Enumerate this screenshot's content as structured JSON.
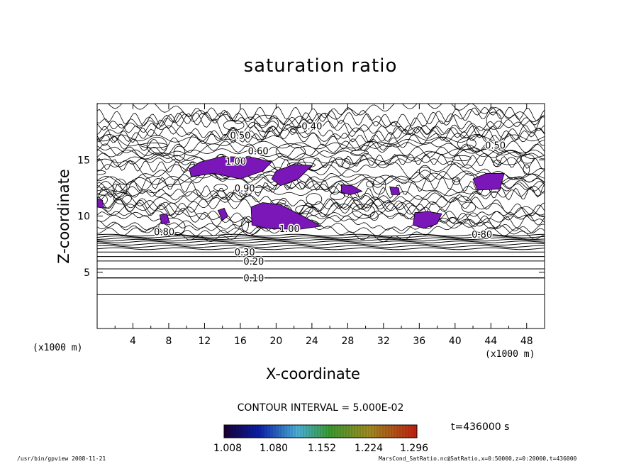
{
  "chart_data": {
    "type": "contour",
    "title": "saturation ratio",
    "xlabel": "X-coordinate",
    "ylabel": "Z-coordinate",
    "x_unit_left": "(x1000 m)",
    "x_unit_right": "(x1000 m)",
    "xlim": [
      0,
      50
    ],
    "ylim": [
      0,
      20
    ],
    "x_ticks": [
      "4",
      "8",
      "12",
      "16",
      "20",
      "24",
      "28",
      "32",
      "36",
      "40",
      "44",
      "48"
    ],
    "y_ticks": [
      "5",
      "10",
      "15"
    ],
    "contour_interval_label": "CONTOUR INTERVAL = 5.000E-02",
    "time_label": "t=436000 s",
    "contour_labels": [
      {
        "text": "0.10",
        "x": 17.5,
        "z": 4.5
      },
      {
        "text": "0.20",
        "x": 17.5,
        "z": 6.0
      },
      {
        "text": "0.30",
        "x": 16.5,
        "z": 6.8
      },
      {
        "text": "0.40",
        "x": 24.0,
        "z": 18.0
      },
      {
        "text": "0.50",
        "x": 16.0,
        "z": 17.2
      },
      {
        "text": "0.50",
        "x": 44.5,
        "z": 16.3
      },
      {
        "text": "0.60",
        "x": 18.0,
        "z": 15.8
      },
      {
        "text": "0.80",
        "x": 7.5,
        "z": 8.6
      },
      {
        "text": "0.80",
        "x": 43.0,
        "z": 8.4
      },
      {
        "text": "0.90",
        "x": 16.5,
        "z": 12.5
      },
      {
        "text": "1.00",
        "x": 21.5,
        "z": 8.9
      },
      {
        "text": "1.00",
        "x": 15.5,
        "z": 14.9
      }
    ],
    "shaded_levels": {
      "color": "#7B16B8",
      "note": "saturation ratio > 1.0 shaded",
      "colorbar_ticks": [
        "1.008",
        "1.080",
        "1.152",
        "1.224",
        "1.296"
      ]
    },
    "supersaturated_regions_x_z": [
      [
        [
          10.3,
          14.2
        ],
        [
          11.5,
          14.8
        ],
        [
          14.0,
          15.3
        ],
        [
          17.5,
          15.2
        ],
        [
          19.5,
          14.8
        ],
        [
          18.5,
          14.0
        ],
        [
          16.0,
          13.3
        ],
        [
          13.0,
          13.8
        ],
        [
          10.5,
          13.5
        ]
      ],
      [
        [
          20.0,
          14.0
        ],
        [
          22.0,
          14.6
        ],
        [
          24.0,
          14.5
        ],
        [
          22.5,
          13.3
        ],
        [
          20.5,
          12.7
        ],
        [
          19.5,
          13.3
        ]
      ],
      [
        [
          17.2,
          10.8
        ],
        [
          18.5,
          11.2
        ],
        [
          20.5,
          11.0
        ],
        [
          23.0,
          10.0
        ],
        [
          25.0,
          9.1
        ],
        [
          22.5,
          8.8
        ],
        [
          19.0,
          8.9
        ],
        [
          17.3,
          9.2
        ]
      ],
      [
        [
          35.5,
          10.3
        ],
        [
          37.0,
          10.4
        ],
        [
          38.5,
          10.2
        ],
        [
          38.0,
          9.3
        ],
        [
          36.5,
          8.9
        ],
        [
          35.3,
          9.2
        ]
      ],
      [
        [
          13.5,
          10.5
        ],
        [
          14.2,
          10.7
        ],
        [
          14.6,
          10.0
        ],
        [
          14.0,
          9.6
        ]
      ],
      [
        [
          42.0,
          13.3
        ],
        [
          43.5,
          13.8
        ],
        [
          45.5,
          13.8
        ],
        [
          45.0,
          12.4
        ],
        [
          42.5,
          12.3
        ]
      ],
      [
        [
          27.3,
          12.8
        ],
        [
          28.5,
          12.7
        ],
        [
          29.6,
          12.2
        ],
        [
          28.3,
          11.9
        ],
        [
          27.3,
          12.1
        ]
      ],
      [
        [
          32.7,
          12.6
        ],
        [
          33.7,
          12.5
        ],
        [
          33.8,
          11.9
        ],
        [
          32.9,
          11.9
        ]
      ],
      [
        [
          0.0,
          11.5
        ],
        [
          0.6,
          11.4
        ],
        [
          0.7,
          10.7
        ],
        [
          0.0,
          10.8
        ]
      ],
      [
        [
          7.0,
          10.1
        ],
        [
          7.8,
          10.2
        ],
        [
          8.1,
          9.4
        ],
        [
          7.2,
          9.3
        ]
      ]
    ],
    "straight_levels_z": [
      3.0,
      4.5,
      5.3,
      6.0,
      6.4,
      6.8,
      7.1,
      7.3,
      7.5,
      7.7,
      7.85,
      8.0,
      8.15,
      8.3
    ],
    "grid": false
  },
  "footer": {
    "left": "/usr/bin/gpview   2008-11-21",
    "right": "MarsCond_SatRatio.nc@SatRatio,x=0:50000,z=0:20000,t=436000"
  }
}
